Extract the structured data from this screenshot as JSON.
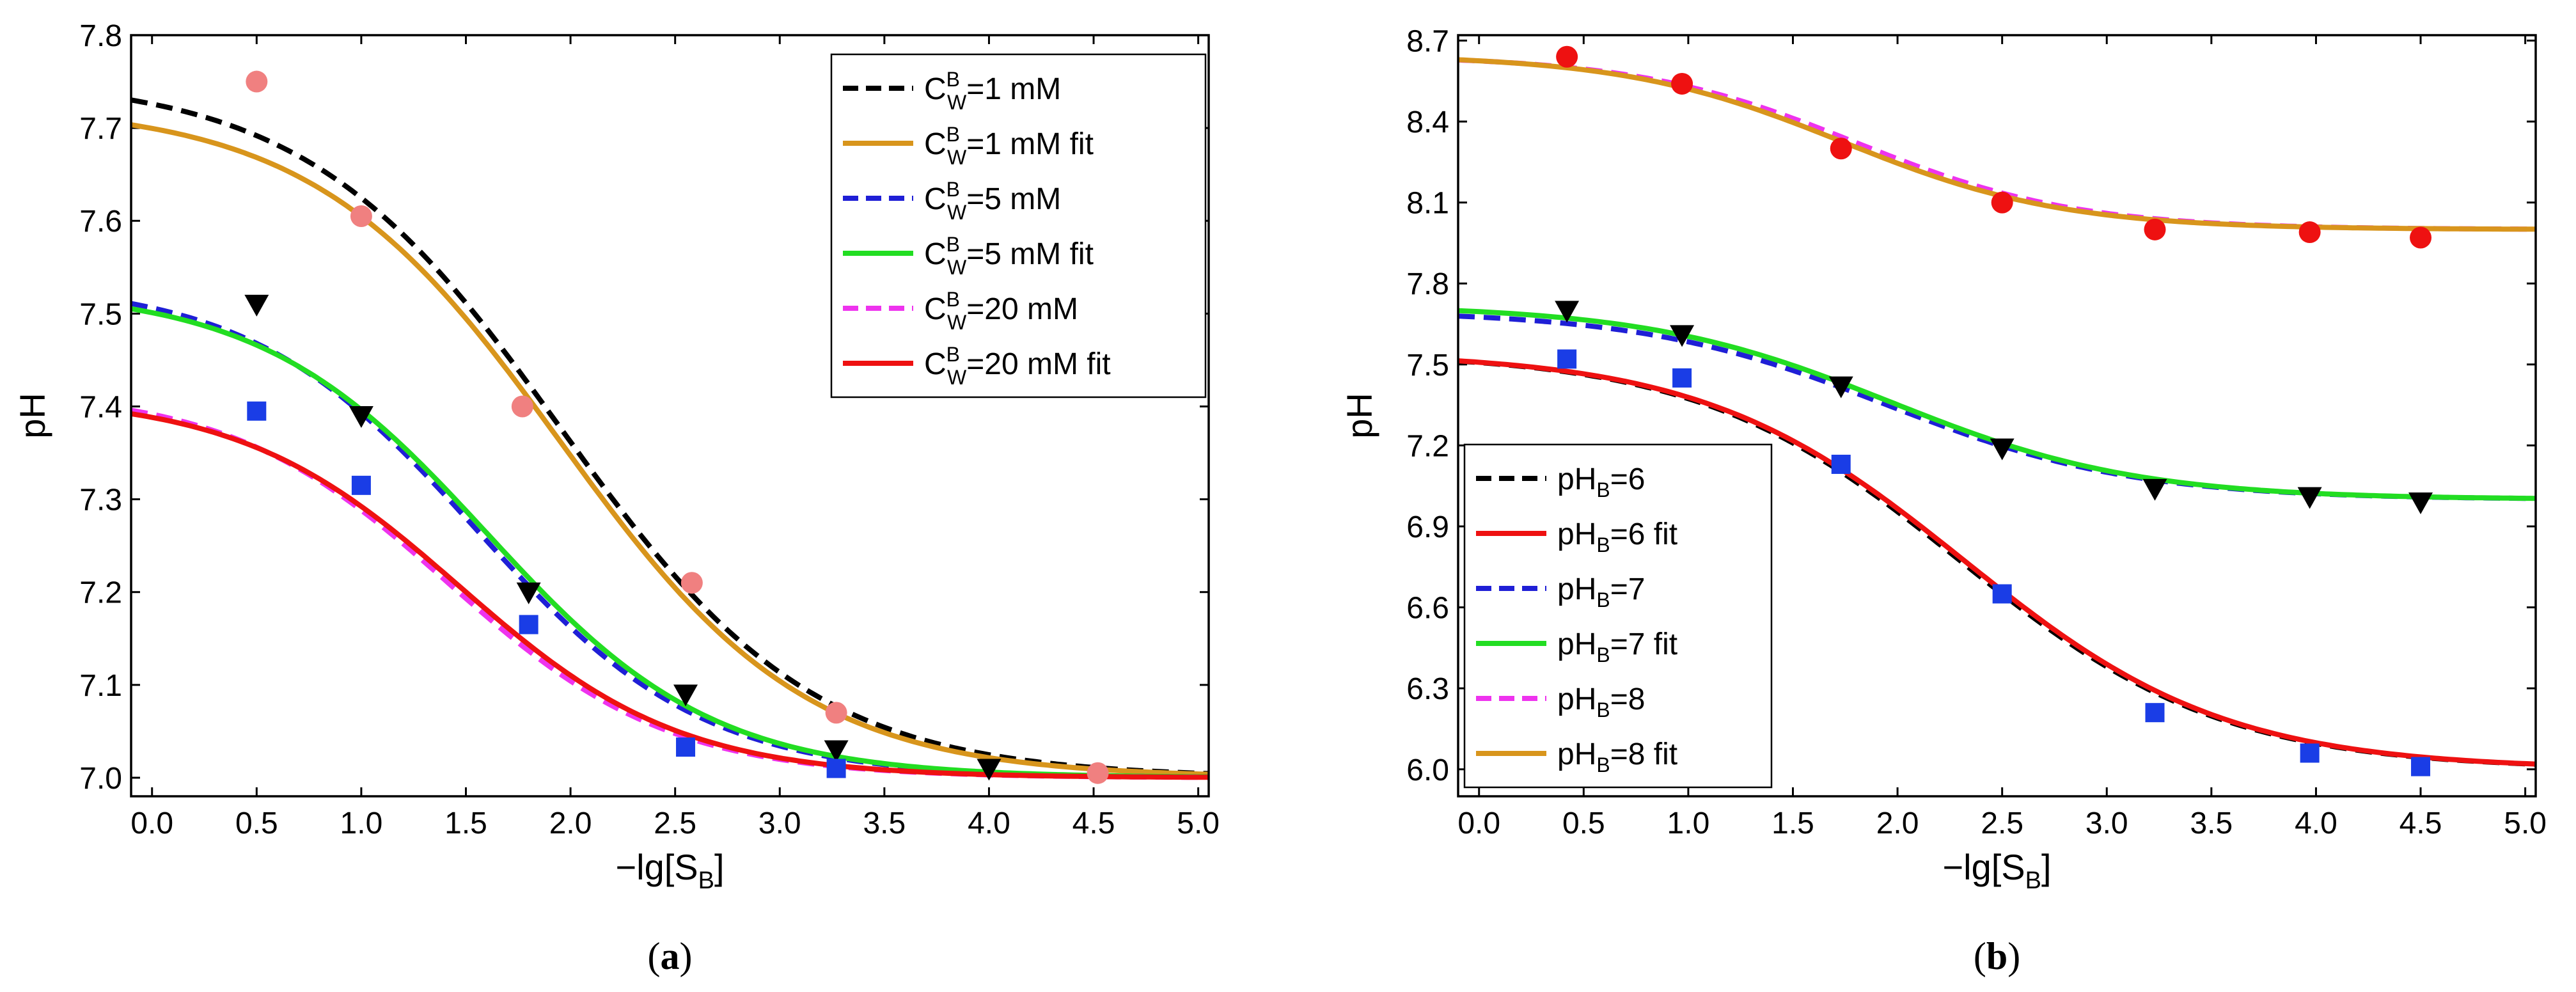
{
  "chart_data": [
    {
      "type": "line",
      "panel_label": "(a)",
      "xlabel": "−lg[S_B]",
      "ylabel": "pH",
      "xlim": [
        -0.1,
        5.05
      ],
      "ylim": [
        6.98,
        7.8
      ],
      "xticks": [
        "0.0",
        "0.5",
        "1.0",
        "1.5",
        "2.0",
        "2.5",
        "3.0",
        "3.5",
        "4.0",
        "4.5",
        "5.0"
      ],
      "yticks": [
        "7.0",
        "7.1",
        "7.2",
        "7.3",
        "7.4",
        "7.5",
        "7.6",
        "7.7",
        "7.8"
      ],
      "legend_position": "top-right",
      "series": [
        {
          "name": "C_W^B=1 mM",
          "sup": "B",
          "sub": "W",
          "label_pre": "C",
          "label_post": "=1 mM",
          "style": "dashed",
          "color": "#000000",
          "curve": {
            "base": 7.0,
            "amp": 0.755,
            "mid": 1.95,
            "slope": 1.65
          }
        },
        {
          "name": "C_W^B=1 mM fit",
          "sup": "B",
          "sub": "W",
          "label_pre": "C",
          "label_post": "=1 mM fit",
          "style": "solid",
          "color": "#d8951c",
          "curve": {
            "base": 7.0,
            "amp": 0.725,
            "mid": 1.95,
            "slope": 1.7
          }
        },
        {
          "name": "C_W^B=5 mM",
          "sup": "B",
          "sub": "W",
          "label_pre": "C",
          "label_post": "=5 mM",
          "style": "dashed",
          "color": "#1f1fd6",
          "curve": {
            "base": 7.0,
            "amp": 0.535,
            "mid": 1.55,
            "slope": 1.85
          }
        },
        {
          "name": "C_W^B=5 mM fit",
          "sup": "B",
          "sub": "W",
          "label_pre": "C",
          "label_post": "=5 mM fit",
          "style": "solid",
          "color": "#22dd22",
          "curve": {
            "base": 7.0,
            "amp": 0.527,
            "mid": 1.6,
            "slope": 1.85
          }
        },
        {
          "name": "C_W^B=20 mM",
          "sup": "B",
          "sub": "W",
          "label_pre": "C",
          "label_post": "=20 mM",
          "style": "dashed",
          "color": "#ee33ee",
          "curve": {
            "base": 7.0,
            "amp": 0.418,
            "mid": 1.42,
            "slope": 1.9
          }
        },
        {
          "name": "C_W^B=20 mM fit",
          "sup": "B",
          "sub": "W",
          "label_pre": "C",
          "label_post": "=20 mM fit",
          "style": "solid",
          "color": "#ee1111",
          "curve": {
            "base": 7.0,
            "amp": 0.412,
            "mid": 1.47,
            "slope": 1.9
          }
        }
      ],
      "points": [
        {
          "marker": "circle",
          "color": "#f08080",
          "x": [
            0.5,
            1.0,
            1.77,
            2.58,
            3.27,
            4.52
          ],
          "y": [
            7.75,
            7.605,
            7.4,
            7.21,
            7.07,
            7.005
          ]
        },
        {
          "marker": "triangle",
          "color": "#000000",
          "x": [
            0.5,
            1.0,
            1.8,
            2.55,
            3.27,
            4.0
          ],
          "y": [
            7.51,
            7.39,
            7.2,
            7.09,
            7.03,
            7.01
          ]
        },
        {
          "marker": "square",
          "color": "#1a3de6",
          "x": [
            0.5,
            1.0,
            1.8,
            2.55,
            3.27
          ],
          "y": [
            7.395,
            7.315,
            7.165,
            7.033,
            7.01
          ]
        }
      ]
    },
    {
      "type": "line",
      "panel_label": "(b)",
      "xlabel": "−lg[S_B]",
      "ylabel": "pH",
      "xlim": [
        -0.1,
        5.05
      ],
      "ylim": [
        5.9,
        8.72
      ],
      "xticks": [
        "0.0",
        "0.5",
        "1.0",
        "1.5",
        "2.0",
        "2.5",
        "3.0",
        "3.5",
        "4.0",
        "4.5",
        "5.0"
      ],
      "yticks": [
        "6.0",
        "6.3",
        "6.6",
        "6.9",
        "7.2",
        "7.5",
        "7.8",
        "8.1",
        "8.4",
        "8.7"
      ],
      "legend_position": "bottom-left",
      "series": [
        {
          "name": "pH_B=6",
          "label_pre": "pH",
          "sub": "B",
          "label_post": "=6",
          "style": "dashed",
          "color": "#000000",
          "curve": {
            "base": 6.0,
            "amp": 1.545,
            "mid": 2.3,
            "slope": 1.6
          }
        },
        {
          "name": "pH_B=6 fit",
          "label_pre": "pH",
          "sub": "B",
          "label_post": "=6 fit",
          "style": "solid",
          "color": "#ee1111",
          "curve": {
            "base": 6.0,
            "amp": 1.545,
            "mid": 2.32,
            "slope": 1.6
          }
        },
        {
          "name": "pH_B=7",
          "label_pre": "pH",
          "sub": "B",
          "label_post": "=7",
          "style": "dashed",
          "color": "#1f1fd6",
          "curve": {
            "base": 7.0,
            "amp": 0.7,
            "mid": 1.95,
            "slope": 1.7
          }
        },
        {
          "name": "pH_B=7 fit",
          "label_pre": "pH",
          "sub": "B",
          "label_post": "=7 fit",
          "style": "solid",
          "color": "#22dd22",
          "curve": {
            "base": 7.0,
            "amp": 0.72,
            "mid": 1.97,
            "slope": 1.7
          }
        },
        {
          "name": "pH_B=8",
          "label_pre": "pH",
          "sub": "B",
          "label_post": "=8",
          "style": "dashed",
          "color": "#ee33ee",
          "curve": {
            "base": 8.0,
            "amp": 0.645,
            "mid": 1.8,
            "slope": 1.9
          }
        },
        {
          "name": "pH_B=8 fit",
          "label_pre": "pH",
          "sub": "B",
          "label_post": "=8 fit",
          "style": "solid",
          "color": "#d8951c",
          "curve": {
            "base": 8.0,
            "amp": 0.648,
            "mid": 1.74,
            "slope": 1.9
          }
        }
      ],
      "points": [
        {
          "marker": "circle",
          "color": "#ee1111",
          "x": [
            0.42,
            0.97,
            1.73,
            2.5,
            3.23,
            3.97,
            4.5
          ],
          "y": [
            8.64,
            8.54,
            8.3,
            8.1,
            8.0,
            7.99,
            7.97
          ]
        },
        {
          "marker": "triangle",
          "color": "#000000",
          "x": [
            0.42,
            0.97,
            1.73,
            2.5,
            3.23,
            3.97,
            4.5
          ],
          "y": [
            7.7,
            7.61,
            7.42,
            7.19,
            7.04,
            7.01,
            6.99
          ]
        },
        {
          "marker": "square",
          "color": "#1a3de6",
          "x": [
            0.42,
            0.97,
            1.73,
            2.5,
            3.23,
            3.97,
            4.5
          ],
          "y": [
            7.52,
            7.45,
            7.13,
            6.65,
            6.21,
            6.06,
            6.01
          ]
        }
      ]
    }
  ]
}
